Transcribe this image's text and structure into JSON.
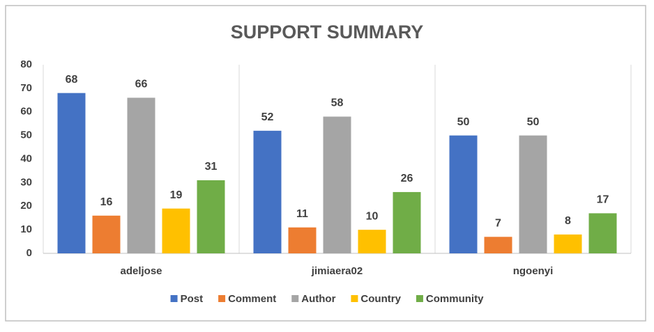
{
  "chart_data": {
    "type": "bar",
    "title": "SUPPORT SUMMARY",
    "categories": [
      "adeljose",
      "jimiaera02",
      "ngoenyi"
    ],
    "series": [
      {
        "name": "Post",
        "color": "#4472c4",
        "values": [
          68,
          52,
          50
        ]
      },
      {
        "name": "Comment",
        "color": "#ed7d31",
        "values": [
          16,
          11,
          7
        ]
      },
      {
        "name": "Author",
        "color": "#a5a5a5",
        "values": [
          66,
          58,
          50
        ]
      },
      {
        "name": "Country",
        "color": "#ffc000",
        "values": [
          19,
          10,
          8
        ]
      },
      {
        "name": "Community",
        "color": "#70ad47",
        "values": [
          31,
          26,
          17
        ]
      }
    ],
    "ylim": [
      0,
      80
    ],
    "yticks": [
      0,
      10,
      20,
      30,
      40,
      50,
      60,
      70,
      80
    ],
    "legend": "bottom"
  }
}
